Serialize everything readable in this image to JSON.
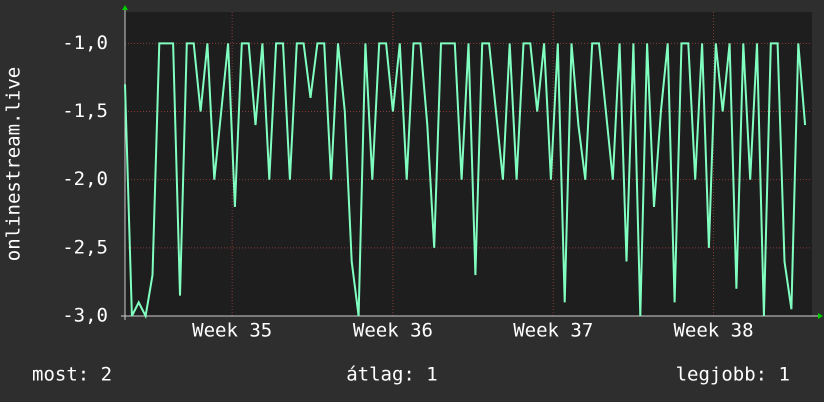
{
  "chart_data": {
    "type": "line",
    "y_label": "onlinestream.live",
    "x": [
      0,
      0.3,
      0.6,
      0.9,
      1.2,
      1.5,
      1.8,
      2.1,
      2.4,
      2.7,
      3,
      3.3,
      3.6,
      3.9,
      4.2,
      4.5,
      4.8,
      5.1,
      5.4,
      5.7,
      6,
      6.3,
      6.6,
      6.9,
      7.2,
      7.5,
      7.8,
      8.1,
      8.4,
      8.7,
      9,
      9.3,
      9.6,
      9.9,
      10.2,
      10.5,
      10.8,
      11.1,
      11.4,
      11.7,
      12,
      12.3,
      12.6,
      12.9,
      13.2,
      13.5,
      13.8,
      14.1,
      14.4,
      14.7,
      15,
      15.3,
      15.6,
      15.9,
      16.2,
      16.5,
      16.8,
      17.1,
      17.4,
      17.7,
      18,
      18.3,
      18.6,
      18.9,
      19.2,
      19.5,
      19.8,
      20.1,
      20.4,
      20.7,
      21,
      21.3,
      21.6,
      21.9,
      22.2,
      22.5,
      22.8,
      23.1,
      23.4,
      23.7,
      24,
      24.3,
      24.6,
      24.9,
      25.2,
      25.5,
      25.8,
      26.1,
      26.4,
      26.7,
      27,
      27.3,
      27.6,
      27.9,
      28.2,
      28.5,
      28.8,
      29.1,
      29.4,
      29.7
    ],
    "series": [
      {
        "color": "#80ffc0",
        "values": [
          -1.3,
          -3,
          -2.9,
          -3,
          -2.7,
          -1,
          -1,
          -1,
          -2.85,
          -1,
          -1,
          -1.5,
          -1,
          -2,
          -1.5,
          -1,
          -2.2,
          -1,
          -1,
          -1.6,
          -1,
          -2,
          -1,
          -1,
          -2,
          -1,
          -1,
          -1.4,
          -1,
          -1,
          -2,
          -1,
          -1.5,
          -2.6,
          -3,
          -1,
          -2,
          -1,
          -1,
          -1.5,
          -1,
          -2,
          -1,
          -1,
          -1.6,
          -2.5,
          -1,
          -1,
          -1,
          -2,
          -1,
          -2.7,
          -1,
          -1,
          -1.5,
          -2,
          -1,
          -2,
          -1,
          -1,
          -1.5,
          -1,
          -2,
          -1,
          -2.9,
          -1,
          -1.6,
          -2,
          -1,
          -1,
          -1.5,
          -2,
          -1,
          -2.6,
          -1,
          -3,
          -1,
          -2.2,
          -1.5,
          -1,
          -2.9,
          -1,
          -1,
          -2,
          -1,
          -2.5,
          -1,
          -1.5,
          -1,
          -2.8,
          -1,
          -2,
          -1,
          -3,
          -1,
          -1,
          -2.6,
          -2.95,
          -1,
          -1.6
        ]
      }
    ],
    "xlim": [
      0,
      30
    ],
    "xticks": [
      {
        "value": 4.68,
        "label": "Week 35"
      },
      {
        "value": 11.7,
        "label": "Week 36"
      },
      {
        "value": 18.7,
        "label": "Week 37"
      },
      {
        "value": 25.7,
        "label": "Week 38"
      }
    ],
    "ylim": [
      -3,
      -0.77
    ],
    "yticks": [
      {
        "value": -3,
        "label": "-3,0"
      },
      {
        "value": -2.5,
        "label": "-2,5"
      },
      {
        "value": -2,
        "label": "-2,0"
      },
      {
        "value": -1.5,
        "label": "-1,5"
      },
      {
        "value": -1,
        "label": "-1,0"
      }
    ],
    "grid": true,
    "footer": [
      "most: 2",
      "átlag: 1",
      "legjobb: 1"
    ]
  }
}
